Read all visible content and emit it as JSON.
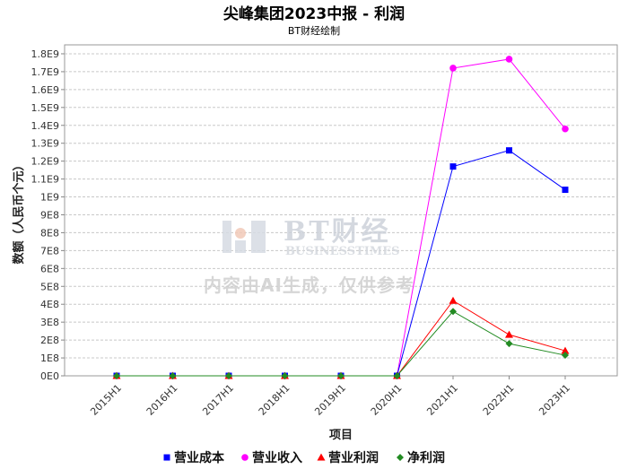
{
  "title": "尖峰集团2023中报 - 利润",
  "subtitle": "BT财经绘制",
  "watermark": {
    "brand": "BT财经",
    "sub": "BUSINESSTIMES",
    "note": "内容由AI生成，仅供参考"
  },
  "colors": {
    "营业成本": "#0000ff",
    "营业收入": "#ff00ff",
    "营业利润": "#ff0000",
    "净利润": "#228B22"
  },
  "chart_data": {
    "type": "line",
    "xlabel": "项目",
    "ylabel": "数额（人民币个元）",
    "ylim": [
      0,
      1850000000.0
    ],
    "yticks": [
      "0E0",
      "1E8",
      "2E8",
      "3E8",
      "4E8",
      "5E8",
      "6E8",
      "7E8",
      "8E8",
      "9E8",
      "1E9",
      "1.1E9",
      "1.2E9",
      "1.3E9",
      "1.4E9",
      "1.5E9",
      "1.6E9",
      "1.7E9",
      "1.8E9"
    ],
    "categories": [
      "2015H1",
      "2016H1",
      "2017H1",
      "2018H1",
      "2019H1",
      "2020H1",
      "2021H1",
      "2022H1",
      "2023H1"
    ],
    "grid": true,
    "legend_position": "bottom",
    "series": [
      {
        "name": "营业成本",
        "marker": "square",
        "values": [
          0,
          0,
          0,
          0,
          0,
          0,
          1170000000.0,
          1260000000.0,
          1040000000.0
        ]
      },
      {
        "name": "营业收入",
        "marker": "circle",
        "values": [
          0,
          0,
          0,
          0,
          0,
          0,
          1720000000.0,
          1770000000.0,
          1380000000.0
        ]
      },
      {
        "name": "营业利润",
        "marker": "triangle",
        "values": [
          0,
          0,
          0,
          0,
          0,
          0,
          420000000.0,
          230000000.0,
          140000000.0
        ]
      },
      {
        "name": "净利润",
        "marker": "diamond",
        "values": [
          0,
          0,
          0,
          0,
          0,
          0,
          360000000.0,
          180000000.0,
          115000000.0
        ]
      }
    ]
  }
}
